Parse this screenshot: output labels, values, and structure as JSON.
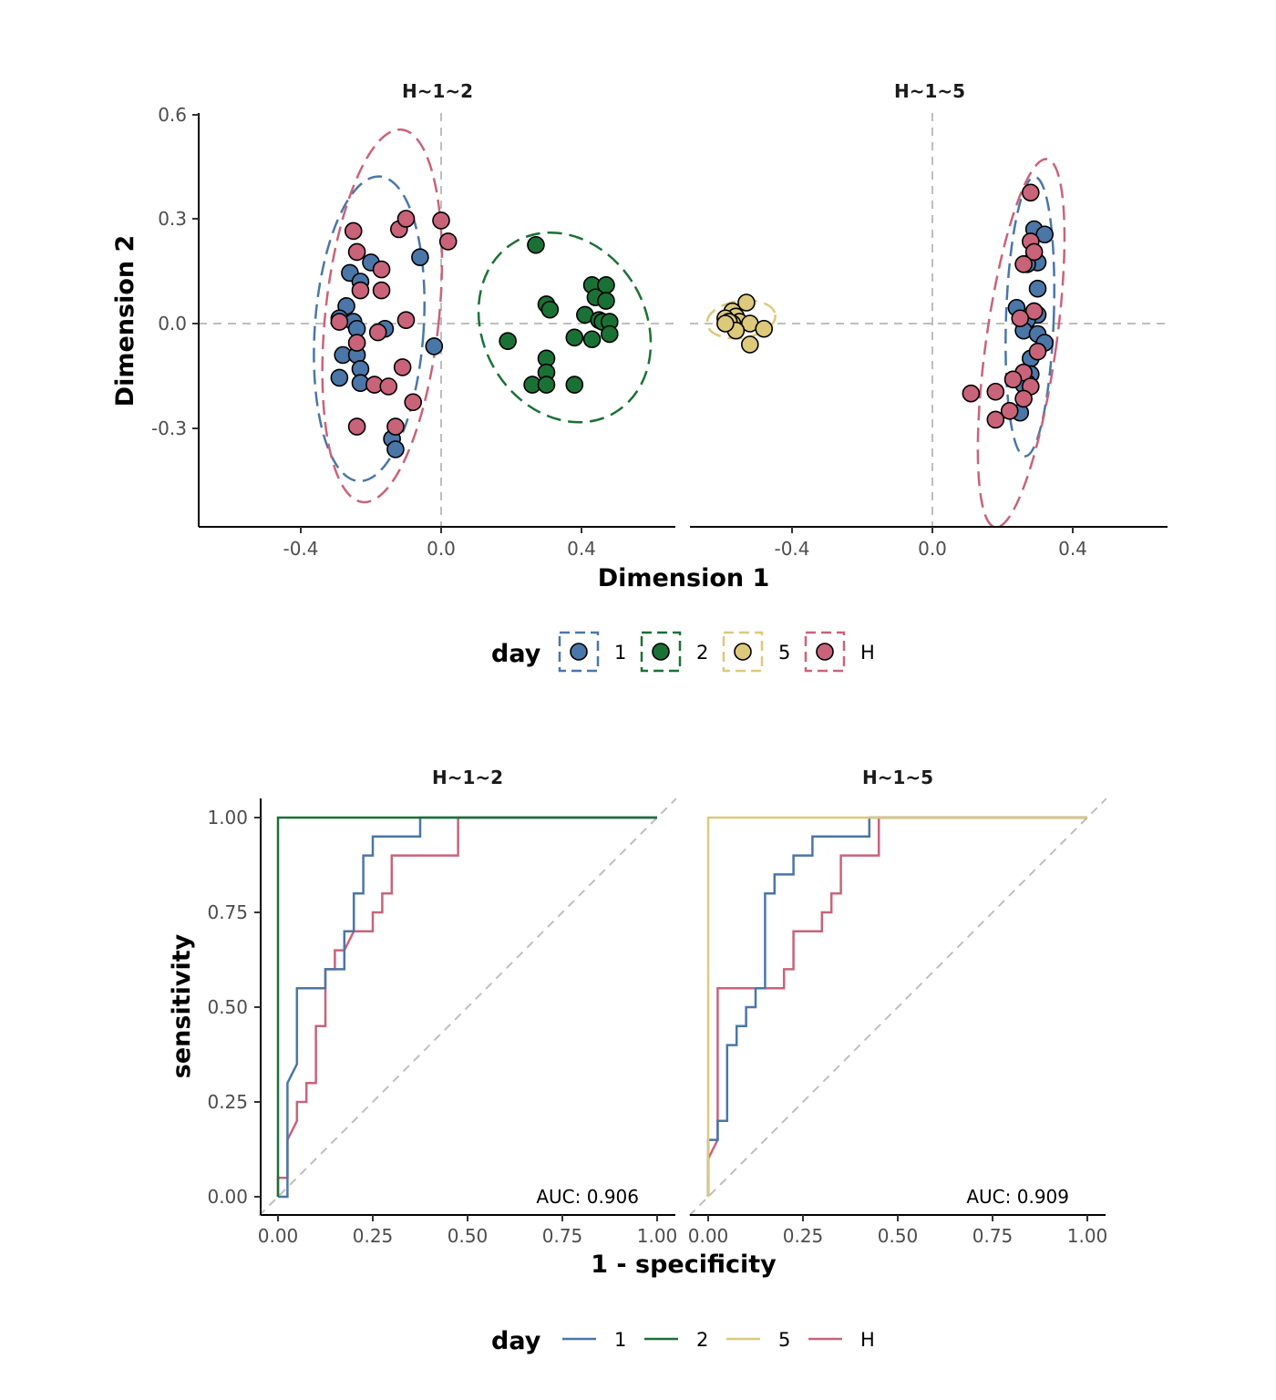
{
  "colors": {
    "1": "#4A76A8",
    "2": "#1A7135",
    "5": "#DCC97A",
    "H": "#C9637A",
    "ref": "#BEBEBE",
    "axis": "#000000"
  },
  "legend": {
    "title": "day",
    "groups": [
      "1",
      "2",
      "5",
      "H"
    ]
  },
  "chart_data": [
    {
      "type": "scatter",
      "xlabel": "Dimension 1",
      "ylabel": "Dimension 2",
      "xticks": [
        "-0.4",
        "0.0",
        "0.4"
      ],
      "yticks": [
        "0.6",
        "0.3",
        "0.0",
        "-0.3"
      ],
      "ylim": [
        -0.585,
        0.605
      ],
      "facets": [
        {
          "title": "H~1~2",
          "xlim": [
            -0.695,
            0.665
          ],
          "ellipses": [
            {
              "group": "1",
              "cx": -0.205,
              "cy": -0.015,
              "rx": 0.155,
              "ry": 0.437,
              "angle": 4
            },
            {
              "group": "H",
              "cx": -0.168,
              "cy": 0.022,
              "rx": 0.162,
              "ry": 0.536,
              "angle": 6
            },
            {
              "group": "2",
              "cx": 0.352,
              "cy": -0.011,
              "rx": 0.232,
              "ry": 0.283,
              "angle": -30
            }
          ],
          "points": {
            "1": [
              [
                -0.06,
                0.19
              ],
              [
                -0.2,
                0.175
              ],
              [
                -0.26,
                0.145
              ],
              [
                -0.23,
                0.12
              ],
              [
                -0.27,
                0.05
              ],
              [
                -0.29,
                0.015
              ],
              [
                -0.25,
                0.005
              ],
              [
                -0.24,
                -0.015
              ],
              [
                -0.16,
                -0.015
              ],
              [
                -0.02,
                -0.065
              ],
              [
                -0.28,
                -0.09
              ],
              [
                -0.24,
                -0.09
              ],
              [
                -0.23,
                -0.13
              ],
              [
                -0.29,
                -0.155
              ],
              [
                -0.23,
                -0.17
              ],
              [
                -0.14,
                -0.33
              ],
              [
                -0.13,
                -0.36
              ]
            ],
            "H": [
              [
                -0.25,
                0.265
              ],
              [
                -0.12,
                0.27
              ],
              [
                -0.1,
                0.3
              ],
              [
                0.0,
                0.295
              ],
              [
                0.02,
                0.235
              ],
              [
                -0.24,
                0.205
              ],
              [
                -0.17,
                0.155
              ],
              [
                -0.23,
                0.095
              ],
              [
                -0.17,
                0.095
              ],
              [
                -0.1,
                0.01
              ],
              [
                -0.29,
                0.005
              ],
              [
                -0.18,
                -0.025
              ],
              [
                -0.24,
                -0.055
              ],
              [
                -0.11,
                -0.125
              ],
              [
                -0.19,
                -0.175
              ],
              [
                -0.15,
                -0.18
              ],
              [
                -0.08,
                -0.225
              ],
              [
                -0.24,
                -0.295
              ],
              [
                -0.13,
                -0.295
              ]
            ],
            "2": [
              [
                0.27,
                0.225
              ],
              [
                0.43,
                0.11
              ],
              [
                0.47,
                0.11
              ],
              [
                0.44,
                0.075
              ],
              [
                0.47,
                0.065
              ],
              [
                0.3,
                0.055
              ],
              [
                0.31,
                0.04
              ],
              [
                0.41,
                0.025
              ],
              [
                0.45,
                0.01
              ],
              [
                0.46,
                0.005
              ],
              [
                0.48,
                0.005
              ],
              [
                0.48,
                -0.03
              ],
              [
                0.19,
                -0.05
              ],
              [
                0.38,
                -0.04
              ],
              [
                0.43,
                -0.045
              ],
              [
                0.3,
                -0.1
              ],
              [
                0.3,
                -0.14
              ],
              [
                0.26,
                -0.175
              ],
              [
                0.3,
                -0.175
              ],
              [
                0.38,
                -0.175
              ]
            ]
          }
        },
        {
          "title": "H~1~5",
          "xlim": [
            -0.695,
            0.665
          ],
          "ellipses": [
            {
              "group": "5",
              "cx": -0.545,
              "cy": 0.012,
              "rx": 0.098,
              "ry": 0.053,
              "angle": -8
            },
            {
              "group": "1",
              "cx": 0.278,
              "cy": 0.02,
              "rx": 0.068,
              "ry": 0.4,
              "angle": 2
            },
            {
              "group": "H",
              "cx": 0.253,
              "cy": -0.056,
              "rx": 0.1,
              "ry": 0.532,
              "angle": 8
            }
          ],
          "points": {
            "5": [
              [
                -0.57,
                0.035
              ],
              [
                -0.56,
                0.02
              ],
              [
                -0.59,
                0.015
              ],
              [
                -0.55,
                0.005
              ],
              [
                -0.57,
                0.0
              ],
              [
                -0.58,
                0.005
              ],
              [
                -0.53,
                0.06
              ],
              [
                -0.52,
                0.0
              ],
              [
                -0.48,
                -0.015
              ],
              [
                -0.56,
                -0.02
              ],
              [
                -0.59,
                0.0
              ],
              [
                -0.52,
                -0.06
              ]
            ],
            "1": [
              [
                0.29,
                0.27
              ],
              [
                0.32,
                0.255
              ],
              [
                0.29,
                0.19
              ],
              [
                0.29,
                0.18
              ],
              [
                0.3,
                0.175
              ],
              [
                0.27,
                0.17
              ],
              [
                0.3,
                0.1
              ],
              [
                0.24,
                0.045
              ],
              [
                0.29,
                0.035
              ],
              [
                0.3,
                0.025
              ],
              [
                0.27,
                0.01
              ],
              [
                0.26,
                -0.02
              ],
              [
                0.3,
                -0.03
              ],
              [
                0.32,
                -0.055
              ],
              [
                0.28,
                -0.1
              ],
              [
                0.28,
                -0.145
              ],
              [
                0.27,
                -0.17
              ],
              [
                0.26,
                -0.175
              ],
              [
                0.25,
                -0.255
              ]
            ],
            "H": [
              [
                0.28,
                0.375
              ],
              [
                0.28,
                0.235
              ],
              [
                0.29,
                0.205
              ],
              [
                0.26,
                0.17
              ],
              [
                0.29,
                0.035
              ],
              [
                0.25,
                0.015
              ],
              [
                0.3,
                -0.08
              ],
              [
                0.26,
                -0.14
              ],
              [
                0.23,
                -0.16
              ],
              [
                0.28,
                -0.18
              ],
              [
                0.11,
                -0.2
              ],
              [
                0.18,
                -0.195
              ],
              [
                0.26,
                -0.215
              ],
              [
                0.22,
                -0.25
              ],
              [
                0.18,
                -0.275
              ]
            ]
          }
        }
      ]
    },
    {
      "type": "line",
      "xlabel": "1 - specificity",
      "ylabel": "sensitivity",
      "xticks": [
        "0.00",
        "0.25",
        "0.50",
        "0.75",
        "1.00"
      ],
      "yticks": [
        "1.00",
        "0.75",
        "0.50",
        "0.25",
        "0.00"
      ],
      "xlim": [
        -0.05,
        1.05
      ],
      "ylim": [
        -0.05,
        1.05
      ],
      "facets": [
        {
          "title": "H~1~2",
          "auc": "AUC: 0.906",
          "series": [
            {
              "group": "H",
              "points": [
                [
                  0,
                  0
                ],
                [
                  0,
                  0.05
                ],
                [
                  0.025,
                  0.05
                ],
                [
                  0.025,
                  0.15
                ],
                [
                  0.05,
                  0.2
                ],
                [
                  0.05,
                  0.25
                ],
                [
                  0.075,
                  0.25
                ],
                [
                  0.075,
                  0.3
                ],
                [
                  0.1,
                  0.3
                ],
                [
                  0.1,
                  0.45
                ],
                [
                  0.125,
                  0.45
                ],
                [
                  0.125,
                  0.6
                ],
                [
                  0.15,
                  0.6
                ],
                [
                  0.15,
                  0.65
                ],
                [
                  0.175,
                  0.65
                ],
                [
                  0.2,
                  0.7
                ],
                [
                  0.25,
                  0.7
                ],
                [
                  0.25,
                  0.75
                ],
                [
                  0.275,
                  0.75
                ],
                [
                  0.275,
                  0.8
                ],
                [
                  0.3,
                  0.8
                ],
                [
                  0.3,
                  0.9
                ],
                [
                  0.475,
                  0.9
                ],
                [
                  0.475,
                  1.0
                ],
                [
                  1.0,
                  1.0
                ]
              ]
            },
            {
              "group": "1",
              "points": [
                [
                  0,
                  0
                ],
                [
                  0.025,
                  0
                ],
                [
                  0.025,
                  0.3
                ],
                [
                  0.05,
                  0.35
                ],
                [
                  0.05,
                  0.55
                ],
                [
                  0.125,
                  0.55
                ],
                [
                  0.125,
                  0.6
                ],
                [
                  0.175,
                  0.6
                ],
                [
                  0.175,
                  0.65
                ],
                [
                  0.175,
                  0.7
                ],
                [
                  0.2,
                  0.7
                ],
                [
                  0.2,
                  0.8
                ],
                [
                  0.225,
                  0.8
                ],
                [
                  0.225,
                  0.9
                ],
                [
                  0.25,
                  0.9
                ],
                [
                  0.25,
                  0.95
                ],
                [
                  0.375,
                  0.95
                ],
                [
                  0.375,
                  1.0
                ],
                [
                  1.0,
                  1.0
                ]
              ]
            },
            {
              "group": "2",
              "points": [
                [
                  0,
                  0
                ],
                [
                  0,
                  1.0
                ],
                [
                  1.0,
                  1.0
                ]
              ]
            }
          ]
        },
        {
          "title": "H~1~5",
          "auc": "AUC: 0.909",
          "series": [
            {
              "group": "H",
              "points": [
                [
                  0,
                  0
                ],
                [
                  0,
                  0.1
                ],
                [
                  0.025,
                  0.15
                ],
                [
                  0.025,
                  0.55
                ],
                [
                  0.2,
                  0.55
                ],
                [
                  0.2,
                  0.6
                ],
                [
                  0.225,
                  0.6
                ],
                [
                  0.225,
                  0.7
                ],
                [
                  0.3,
                  0.7
                ],
                [
                  0.3,
                  0.75
                ],
                [
                  0.325,
                  0.75
                ],
                [
                  0.325,
                  0.8
                ],
                [
                  0.35,
                  0.8
                ],
                [
                  0.35,
                  0.9
                ],
                [
                  0.45,
                  0.9
                ],
                [
                  0.45,
                  1.0
                ],
                [
                  1.0,
                  1.0
                ]
              ]
            },
            {
              "group": "1",
              "points": [
                [
                  0,
                  0
                ],
                [
                  0,
                  0.15
                ],
                [
                  0.025,
                  0.15
                ],
                [
                  0.025,
                  0.2
                ],
                [
                  0.05,
                  0.2
                ],
                [
                  0.05,
                  0.4
                ],
                [
                  0.075,
                  0.4
                ],
                [
                  0.075,
                  0.45
                ],
                [
                  0.1,
                  0.45
                ],
                [
                  0.1,
                  0.5
                ],
                [
                  0.125,
                  0.5
                ],
                [
                  0.125,
                  0.55
                ],
                [
                  0.15,
                  0.55
                ],
                [
                  0.15,
                  0.8
                ],
                [
                  0.175,
                  0.8
                ],
                [
                  0.175,
                  0.85
                ],
                [
                  0.225,
                  0.85
                ],
                [
                  0.225,
                  0.9
                ],
                [
                  0.275,
                  0.9
                ],
                [
                  0.275,
                  0.95
                ],
                [
                  0.425,
                  0.95
                ],
                [
                  0.425,
                  1.0
                ],
                [
                  1.0,
                  1.0
                ]
              ]
            },
            {
              "group": "5",
              "points": [
                [
                  0,
                  0
                ],
                [
                  0,
                  1.0
                ],
                [
                  1.0,
                  1.0
                ]
              ]
            }
          ]
        }
      ]
    }
  ]
}
